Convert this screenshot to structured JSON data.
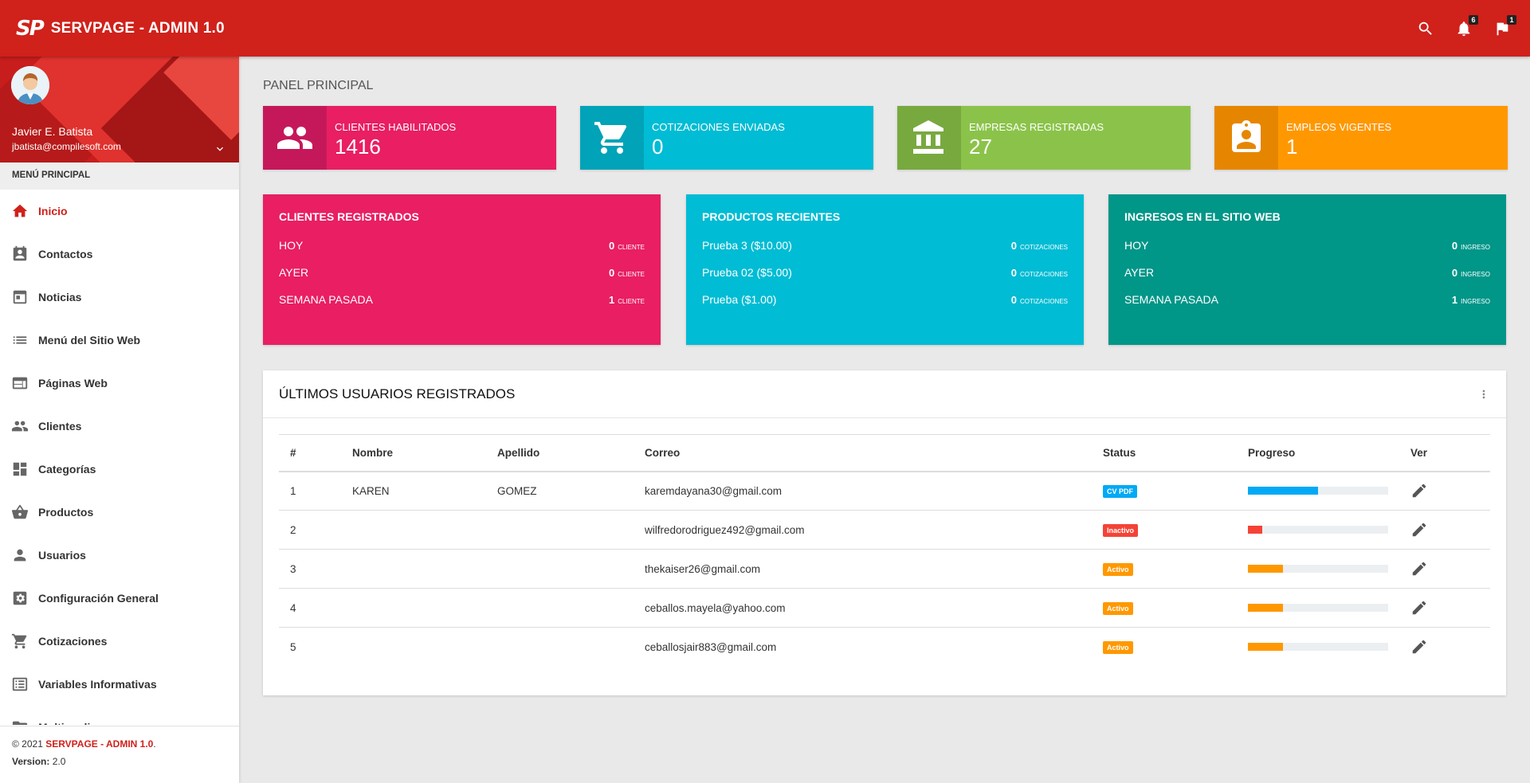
{
  "header": {
    "logo_text": "SP",
    "title": "SERVPAGE - ADMIN 1.0",
    "notifications_count": "6",
    "flags_count": "1"
  },
  "user": {
    "name": "Javier E. Batista",
    "email": "jbatista@compilesoft.com"
  },
  "sidebar": {
    "header": "MENÚ PRINCIPAL",
    "items": [
      {
        "label": "Inicio",
        "icon": "home-icon",
        "active": true
      },
      {
        "label": "Contactos",
        "icon": "contacts-icon"
      },
      {
        "label": "Noticias",
        "icon": "news-icon"
      },
      {
        "label": "Menú del Sitio Web",
        "icon": "list-icon"
      },
      {
        "label": "Páginas Web",
        "icon": "web-page-icon"
      },
      {
        "label": "Clientes",
        "icon": "people-icon"
      },
      {
        "label": "Categorías",
        "icon": "dashboard-icon"
      },
      {
        "label": "Productos",
        "icon": "basket-icon"
      },
      {
        "label": "Usuarios",
        "icon": "person-icon"
      },
      {
        "label": "Configuración General",
        "icon": "settings-icon"
      },
      {
        "label": "Cotizaciones",
        "icon": "cart-icon"
      },
      {
        "label": "Variables Informativas",
        "icon": "notes-icon"
      },
      {
        "label": "Multimedia",
        "icon": "folder-icon"
      }
    ]
  },
  "footer": {
    "copyright_prefix": "© 2021",
    "brand": "SERVPAGE - ADMIN 1.0",
    "period": ".",
    "version_label": "Version:",
    "version_value": "2.0"
  },
  "page": {
    "title": "PANEL PRINCIPAL"
  },
  "info_boxes": [
    {
      "label": "CLIENTES HABILITADOS",
      "value": "1416",
      "color": "#e91e63",
      "icon_color": "#c5185a",
      "icon": "people-icon"
    },
    {
      "label": "COTIZACIONES ENVIADAS",
      "value": "0",
      "color": "#00bcd4",
      "icon_color": "#00a3b8",
      "icon": "cart-icon"
    },
    {
      "label": "EMPRESAS REGISTRADAS",
      "value": "27",
      "color": "#8bc34a",
      "icon_color": "#78a93f",
      "icon": "bank-icon"
    },
    {
      "label": "EMPLEOS VIGENTES",
      "value": "1",
      "color": "#ff9800",
      "icon_color": "#e68600",
      "icon": "badge-icon"
    }
  ],
  "stat_cards": [
    {
      "title": "CLIENTES REGISTRADOS",
      "color": "#e91e63",
      "rows": [
        {
          "label": "HOY",
          "value": "0",
          "unit": "CLIENTE"
        },
        {
          "label": "AYER",
          "value": "0",
          "unit": "CLIENTE"
        },
        {
          "label": "SEMANA PASADA",
          "value": "1",
          "unit": "CLIENTE"
        }
      ]
    },
    {
      "title": "PRODUCTOS RECIENTES",
      "color": "#00bcd4",
      "rows": [
        {
          "label": "Prueba 3 ($10.00)",
          "value": "0",
          "unit": "COTIZACIONES"
        },
        {
          "label": "Prueba 02 ($5.00)",
          "value": "0",
          "unit": "COTIZACIONES"
        },
        {
          "label": "Prueba ($1.00)",
          "value": "0",
          "unit": "COTIZACIONES"
        }
      ]
    },
    {
      "title": "INGRESOS EN EL SITIO WEB",
      "color": "#009688",
      "rows": [
        {
          "label": "HOY",
          "value": "0",
          "unit": "INGRESO"
        },
        {
          "label": "AYER",
          "value": "0",
          "unit": "INGRESO"
        },
        {
          "label": "SEMANA PASADA",
          "value": "1",
          "unit": "INGRESO"
        }
      ]
    }
  ],
  "users_table": {
    "title": "ÚLTIMOS USUARIOS REGISTRADOS",
    "columns": [
      "#",
      "Nombre",
      "Apellido",
      "Correo",
      "Status",
      "Progreso",
      "Ver"
    ],
    "rows": [
      {
        "num": "1",
        "nombre": "KAREN",
        "apellido": "GOMEZ",
        "correo": "karemdayana30@gmail.com",
        "status": "CV PDF",
        "status_color": "#03a9f4",
        "progress": 0.5,
        "progress_color": "#03a9f4"
      },
      {
        "num": "2",
        "nombre": "",
        "apellido": "",
        "correo": "wilfredorodriguez492@gmail.com",
        "status": "Inactivo",
        "status_color": "#f44336",
        "progress": 0.1,
        "progress_color": "#f44336"
      },
      {
        "num": "3",
        "nombre": "",
        "apellido": "",
        "correo": "thekaiser26@gmail.com",
        "status": "Activo",
        "status_color": "#ff9800",
        "progress": 0.25,
        "progress_color": "#ff9800"
      },
      {
        "num": "4",
        "nombre": "",
        "apellido": "",
        "correo": "ceballos.mayela@yahoo.com",
        "status": "Activo",
        "status_color": "#ff9800",
        "progress": 0.25,
        "progress_color": "#ff9800"
      },
      {
        "num": "5",
        "nombre": "",
        "apellido": "",
        "correo": "ceballosjair883@gmail.com",
        "status": "Activo",
        "status_color": "#ff9800",
        "progress": 0.25,
        "progress_color": "#ff9800"
      }
    ]
  }
}
